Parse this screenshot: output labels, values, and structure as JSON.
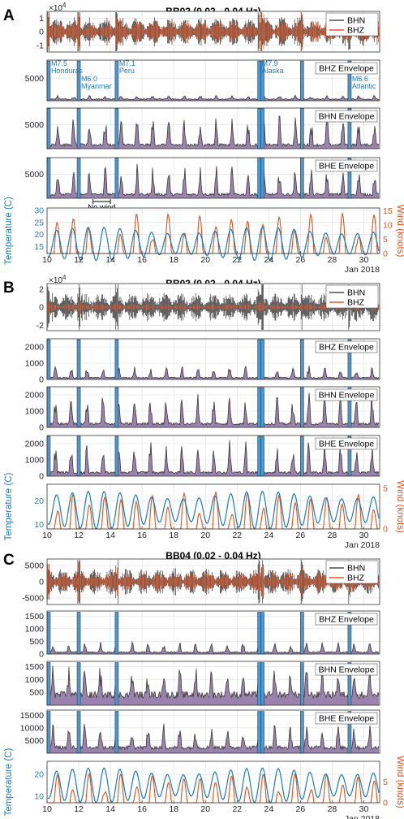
{
  "chart_data": {
    "type": "line",
    "x_axis": {
      "ticks": [
        10,
        12,
        14,
        16,
        18,
        20,
        22,
        24,
        26,
        28,
        30
      ],
      "range": [
        10,
        31
      ],
      "label": "Jan 2018"
    },
    "earthquake_days": [
      10.1,
      12.0,
      14.4,
      23.4,
      23.6,
      26.1,
      29.1
    ],
    "colors": {
      "bhn": "#4f4f4f",
      "bhz": "#e0572a",
      "envelope_fill": "#9b83ad",
      "envelope_line": "#3a3a3a",
      "event_fill": "#4d98cf",
      "temperature": "#1f7ab5",
      "wind": "#d9531e",
      "grid": "#dddddd"
    },
    "stations": [
      {
        "letter": "A",
        "title": "BB02  (0.02 - 0.04 Hz)",
        "waveform": {
          "ticks": [
            "1",
            "0",
            "-1"
          ],
          "tick_values": [
            1,
            0,
            -1
          ],
          "range": [
            -1.5,
            1.5
          ],
          "exponent_base": "×10",
          "exponent_power": "4",
          "legend": [
            "BHN",
            "BHZ"
          ],
          "bhn_amp": 1.1,
          "bhz_amp": 0.85
        },
        "envelopes": [
          {
            "label": "BHZ Envelope",
            "ticks": [
              "5000"
            ],
            "tick_values": [
              5000
            ],
            "range": [
              0,
              9000
            ],
            "bg_level": 400,
            "event_peak": 8800,
            "wind_peaks": 0.1
          },
          {
            "label": "BHN Envelope",
            "ticks": [
              "5000"
            ],
            "tick_values": [
              5000
            ],
            "range": [
              0,
              8500
            ],
            "bg_level": 900,
            "event_peak": 8400,
            "wind_peaks": 0.75
          },
          {
            "label": "BHE Envelope",
            "ticks": [
              "5000"
            ],
            "tick_values": [
              5000
            ],
            "range": [
              0,
              8500
            ],
            "bg_level": 900,
            "event_peak": 8400,
            "wind_peaks": 0.75
          }
        ],
        "earthquakes": [
          {
            "day": 10.1,
            "mag": "M7.5",
            "place": "Honduras",
            "row": 0
          },
          {
            "day": 12.0,
            "mag": "M6.0",
            "place": "Myanmar",
            "row": 1
          },
          {
            "day": 14.4,
            "mag": "M7.1",
            "place": "Peru",
            "row": 0
          },
          {
            "day": 23.4,
            "mag": "M7.9",
            "place": "Alaska",
            "row": 0
          },
          {
            "day": 29.1,
            "mag": "M6.6",
            "place": "Atlantic",
            "row": 1
          }
        ],
        "note": {
          "text": "No wind",
          "from_day": 12.9,
          "to_day": 14.0
        },
        "weather": {
          "temp_ticks": [
            "30",
            "25",
            "20",
            "15"
          ],
          "temp_tick_values": [
            30,
            25,
            20,
            15
          ],
          "temp_range": [
            12,
            31
          ],
          "temp_base": 16,
          "temp_amp": 7,
          "wind_ticks": [
            "15",
            "10",
            "5",
            "0"
          ],
          "wind_tick_values": [
            15,
            10,
            5,
            0
          ],
          "wind_range": [
            0,
            16
          ],
          "wind_max": 14,
          "temp_label": "Temperature (C)",
          "wind_label": "Wind (knots)"
        }
      },
      {
        "letter": "B",
        "title": "BB03  (0.02 - 0.04 Hz)",
        "waveform": {
          "ticks": [
            "2",
            "0",
            "-2"
          ],
          "tick_values": [
            2,
            0,
            -2
          ],
          "range": [
            -2.6,
            2.6
          ],
          "exponent_base": "×10",
          "exponent_power": "4",
          "legend": [
            "BHN",
            "BHZ"
          ],
          "bhn_amp": 1.6,
          "bhz_amp": 0.35
        },
        "envelopes": [
          {
            "label": "BHZ Envelope",
            "ticks": [
              "2000",
              "1000",
              "0"
            ],
            "tick_values": [
              2000,
              1000,
              0
            ],
            "range": [
              0,
              2500
            ],
            "bg_level": 120,
            "event_peak": 2450,
            "wind_peaks": 0.3
          },
          {
            "label": "BHN Envelope",
            "ticks": [
              "2000",
              "1000",
              "0"
            ],
            "tick_values": [
              2000,
              1000,
              0
            ],
            "range": [
              0,
              2500
            ],
            "bg_level": 250,
            "event_peak": 2450,
            "wind_peaks": 0.8
          },
          {
            "label": "BHE Envelope",
            "ticks": [
              "2000",
              "1000",
              "0"
            ],
            "tick_values": [
              2000,
              1000,
              0
            ],
            "range": [
              0,
              2500
            ],
            "bg_level": 250,
            "event_peak": 2450,
            "wind_peaks": 0.85
          }
        ],
        "weather": {
          "temp_ticks": [
            "20",
            "10"
          ],
          "temp_tick_values": [
            20,
            10
          ],
          "temp_range": [
            8,
            27
          ],
          "temp_base": 16,
          "temp_amp": 8,
          "wind_ticks": [
            "5",
            "0"
          ],
          "wind_tick_values": [
            5,
            0
          ],
          "wind_range": [
            0,
            5.5
          ],
          "wind_max": 4.5,
          "temp_label": "Temperature (C)",
          "wind_label": "Wind (knots)"
        }
      },
      {
        "letter": "C",
        "title": "BB04  (0.02 - 0.04 Hz)",
        "waveform": {
          "ticks": [
            "5000",
            "0",
            "-5000"
          ],
          "tick_values": [
            5000,
            0,
            -5000
          ],
          "range": [
            -7000,
            7000
          ],
          "exponent_base": "",
          "exponent_power": "",
          "legend": [
            "BHN",
            "BHZ"
          ],
          "bhn_amp": 4200,
          "bhz_amp": 3200
        },
        "envelopes": [
          {
            "label": "BHZ Envelope",
            "ticks": [
              "1500",
              "1000",
              "500",
              "0"
            ],
            "tick_values": [
              1500,
              1000,
              500,
              0
            ],
            "range": [
              0,
              1700
            ],
            "bg_level": 80,
            "event_peak": 1650,
            "wind_peaks": 0.25
          },
          {
            "label": "BHN Envelope",
            "ticks": [
              "1500",
              "1000",
              "500"
            ],
            "tick_values": [
              1500,
              1000,
              500
            ],
            "range": [
              0,
              1700
            ],
            "bg_level": 450,
            "event_peak": 1650,
            "wind_peaks": 0.7
          },
          {
            "label": "BHE Envelope",
            "ticks": [
              "15000",
              "10000",
              "5000"
            ],
            "tick_values": [
              15000,
              10000,
              5000
            ],
            "range": [
              0,
              17000
            ],
            "bg_level": 2500,
            "event_peak": 16500,
            "wind_peaks": 0.6
          }
        ],
        "weather": {
          "temp_ticks": [
            "20",
            "10"
          ],
          "temp_tick_values": [
            20,
            10
          ],
          "temp_range": [
            7,
            26
          ],
          "temp_base": 15,
          "temp_amp": 8,
          "wind_ticks": [
            "5",
            "0"
          ],
          "wind_tick_values": [
            5,
            0
          ],
          "wind_range": [
            0,
            10
          ],
          "wind_max": 7,
          "temp_label": "Temperature (C)",
          "wind_label": "Wind (knots)"
        }
      }
    ]
  }
}
